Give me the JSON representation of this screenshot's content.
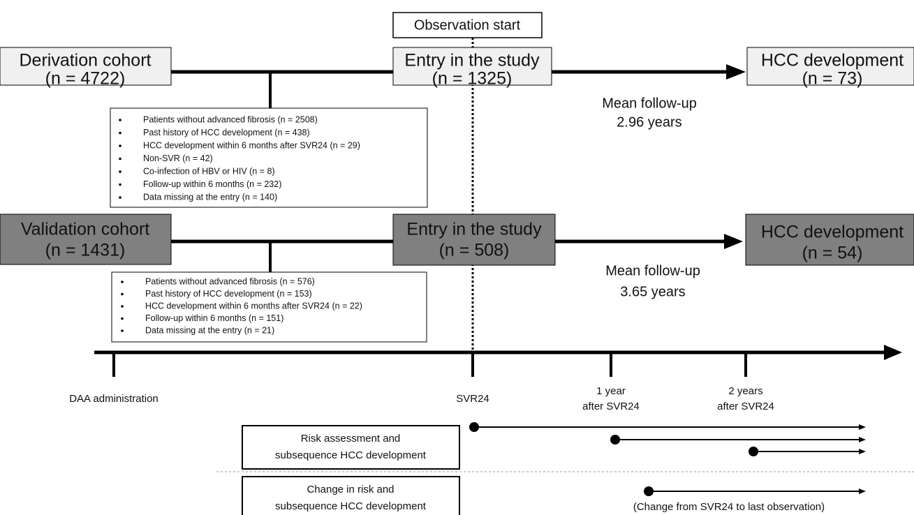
{
  "observation_start": "Observation start",
  "derivation": {
    "cohort": [
      "Derivation cohort",
      "(n = 4722)"
    ],
    "entry": [
      "Entry in the study",
      "(n = 1325)"
    ],
    "outcome": [
      "HCC development",
      "(n = 73)"
    ],
    "follow_up": [
      "Mean follow-up",
      "2.96 years"
    ],
    "exclusions": [
      "Patients without advanced fibrosis (n = 2508)",
      "Past history of HCC development  (n = 438)",
      "HCC development within 6 months after SVR24 (n = 29)",
      "Non-SVR (n = 42)",
      "Co-infection of HBV or HIV (n = 8)",
      "Follow-up  within 6 months (n = 232)",
      "Data missing at the entry (n = 140)"
    ]
  },
  "validation": {
    "cohort": [
      "Validation cohort",
      "(n = 1431)"
    ],
    "entry": [
      "Entry in the study",
      "(n = 508)"
    ],
    "outcome": [
      "HCC development",
      "(n = 54)"
    ],
    "follow_up": [
      "Mean follow-up",
      "3.65 years"
    ],
    "exclusions": [
      "Patients without advanced fibrosis (n = 576)",
      "Past history of HCC development  (n = 153)",
      "HCC development within 6 months after SVR24 (n = 22)",
      "Follow-up  within 6 months (n = 151)",
      "Data missing at the entry (n = 21)"
    ]
  },
  "timeline": [
    "DAA administration",
    "SVR24",
    [
      "1 year",
      "after SVR24"
    ],
    [
      "2 years",
      "after SVR24"
    ]
  ],
  "analyses": [
    [
      "Risk assessment and",
      "subsequence HCC development"
    ],
    [
      "Change in risk and",
      "subsequence HCC development"
    ]
  ],
  "note": "(Change from SVR24 to last observation)"
}
